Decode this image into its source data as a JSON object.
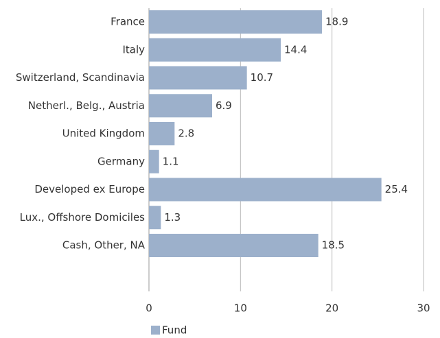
{
  "chart_data": {
    "type": "bar",
    "orientation": "horizontal",
    "categories": [
      "France",
      "Italy",
      "Switzerland, Scandinavia",
      "Netherl., Belg., Austria",
      "United Kingdom",
      "Germany",
      "Developed ex Europe",
      "Lux., Offshore Domiciles",
      "Cash, Other, NA"
    ],
    "series": [
      {
        "name": "Fund",
        "color": "#9cb0cb",
        "values": [
          18.9,
          14.4,
          10.7,
          6.9,
          2.8,
          1.1,
          25.4,
          1.3,
          18.5
        ]
      }
    ],
    "xlim": [
      0,
      30
    ],
    "xticks": [
      0,
      10,
      20,
      30
    ],
    "grid": true,
    "legend": "bottom-left",
    "data_labels": true
  }
}
